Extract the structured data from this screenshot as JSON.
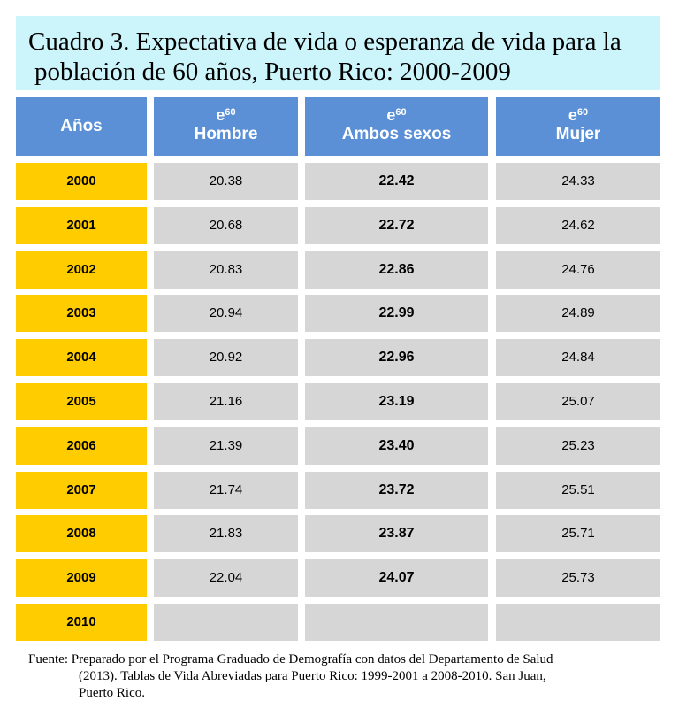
{
  "title": {
    "line1": "Cuadro 3. Expectativa de vida o esperanza de vida para la",
    "line2": "población de 60 años, Puerto Rico: 2000-2009"
  },
  "headers": {
    "year": "Años",
    "e_symbol": "e",
    "e_sup": "60",
    "male": "Hombre",
    "both": "Ambos sexos",
    "female": "Mujer"
  },
  "rows": [
    {
      "year": "2000",
      "male": "20.38",
      "both": "22.42",
      "female": "24.33"
    },
    {
      "year": "2001",
      "male": "20.68",
      "both": "22.72",
      "female": "24.62"
    },
    {
      "year": "2002",
      "male": "20.83",
      "both": "22.86",
      "female": "24.76"
    },
    {
      "year": "2003",
      "male": "20.94",
      "both": "22.99",
      "female": "24.89"
    },
    {
      "year": "2004",
      "male": "20.92",
      "both": "22.96",
      "female": "24.84"
    },
    {
      "year": "2005",
      "male": "21.16",
      "both": "23.19",
      "female": "25.07"
    },
    {
      "year": "2006",
      "male": "21.39",
      "both": "23.40",
      "female": "25.23"
    },
    {
      "year": "2007",
      "male": "21.74",
      "both": "23.72",
      "female": "25.51"
    },
    {
      "year": "2008",
      "male": "21.83",
      "both": "23.87",
      "female": "25.71"
    },
    {
      "year": "2009",
      "male": "22.04",
      "both": "24.07",
      "female": "25.73"
    },
    {
      "year": "2010",
      "male": "",
      "both": "",
      "female": ""
    }
  ],
  "source": {
    "line1": "Fuente: Preparado por el Programa Graduado de Demografía con datos del Departamento de Salud",
    "line2": "(2013). Tablas de Vida Abreviadas para Puerto Rico: 1999-2001 a  2008-2010. San Juan,",
    "line3": "Puerto Rico."
  },
  "colors": {
    "header_bg": "#5b8fd6",
    "year_bg": "#ffcc00",
    "cell_bg": "#d6d6d6",
    "title_bg": "#ccf5fb"
  }
}
